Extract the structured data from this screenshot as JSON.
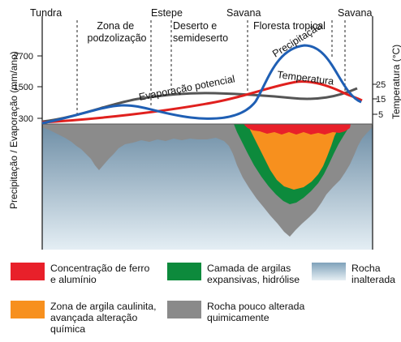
{
  "zones": [
    {
      "label": "Tundra"
    },
    {
      "label": "Zona de\npodzolização"
    },
    {
      "label": "Estepe"
    },
    {
      "label": "Deserto e\nsemideserto"
    },
    {
      "label": "Savana"
    },
    {
      "label": "Floresta tropical"
    },
    {
      "label": "Savana"
    }
  ],
  "axes": {
    "left_title": "Precipitação / Evaporação (mm/ano)",
    "right_title": "Temperatura (°C)",
    "left_ticks": [
      "2700",
      "1500",
      "300"
    ],
    "right_ticks": [
      "25",
      "15",
      "5"
    ]
  },
  "curves": {
    "precipitation": {
      "label": "Precipitação",
      "color": "#1f5fb4"
    },
    "evaporation": {
      "label": "Evaporação potencial",
      "color": "#555555"
    },
    "temperature": {
      "label": "Temperatura",
      "color": "#e0201e"
    }
  },
  "legend": [
    {
      "label": "Concentração de ferro\ne alumínio",
      "color": "#e8202a"
    },
    {
      "label": "Camada de argilas\nexpansivas, hidrólise",
      "color": "#0d8a3c"
    },
    {
      "label": "Rocha\ninalterada",
      "color": "#9fbccc"
    },
    {
      "label": "Zona de argila caulinita,\navançada alteração\nquímica",
      "color": "#f7901e"
    },
    {
      "label": "Rocha pouco alterada\nquimicamente",
      "color": "#8a8a8a"
    }
  ]
}
